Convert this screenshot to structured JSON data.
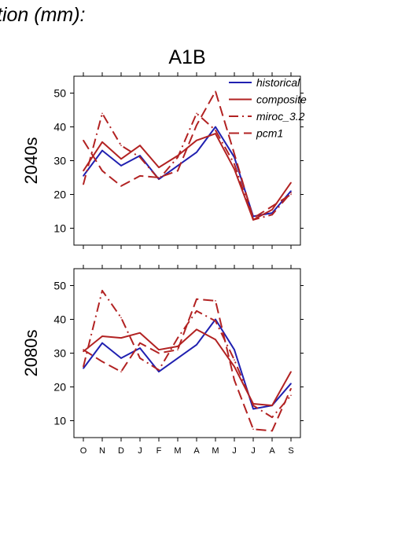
{
  "page": {
    "heading": "tion (mm):",
    "scenario": "A1B"
  },
  "chart_data": [
    {
      "type": "line",
      "ylabel": "2040s",
      "ylim": [
        5,
        55
      ],
      "yticks": [
        10,
        20,
        30,
        40,
        50
      ],
      "categories": [
        "O",
        "N",
        "D",
        "J",
        "F",
        "M",
        "A",
        "M",
        "J",
        "J",
        "A",
        "S"
      ],
      "legend": {
        "placement": "top-right"
      },
      "series": [
        {
          "name": "historical",
          "color": "#2020b0",
          "dash": "solid",
          "values": [
            25.5,
            33.0,
            28.5,
            31.5,
            24.5,
            28.5,
            32.5,
            40.0,
            31.0,
            13.5,
            14.5,
            21.0
          ]
        },
        {
          "name": "composite",
          "color": "#b22222",
          "dash": "solid",
          "values": [
            27.0,
            35.5,
            30.5,
            34.5,
            28.0,
            31.5,
            36.0,
            38.0,
            27.5,
            12.5,
            15.5,
            23.5
          ]
        },
        {
          "name": "miroc_3.2",
          "color": "#b22222",
          "dash": "dashdot",
          "values": [
            23.0,
            44.0,
            34.5,
            31.0,
            24.5,
            31.0,
            44.0,
            39.0,
            29.0,
            12.5,
            14.0,
            20.5
          ]
        },
        {
          "name": "pcm1",
          "color": "#b22222",
          "dash": "dash",
          "values": [
            36.0,
            27.0,
            22.5,
            25.5,
            25.0,
            27.0,
            40.5,
            50.5,
            32.0,
            13.0,
            16.5,
            20.0
          ]
        }
      ]
    },
    {
      "type": "line",
      "ylabel": "2080s",
      "ylim": [
        5,
        55
      ],
      "yticks": [
        10,
        20,
        30,
        40,
        50
      ],
      "categories": [
        "O",
        "N",
        "D",
        "J",
        "F",
        "M",
        "A",
        "M",
        "J",
        "J",
        "A",
        "S"
      ],
      "series": [
        {
          "name": "historical",
          "color": "#2020b0",
          "dash": "solid",
          "values": [
            25.5,
            33.0,
            28.5,
            31.5,
            24.5,
            28.5,
            32.5,
            40.0,
            31.0,
            13.5,
            14.5,
            21.0
          ]
        },
        {
          "name": "composite",
          "color": "#b22222",
          "dash": "solid",
          "values": [
            30.5,
            35.0,
            34.5,
            36.0,
            31.0,
            32.0,
            37.0,
            34.0,
            26.0,
            15.0,
            14.5,
            24.5
          ]
        },
        {
          "name": "miroc_3.2",
          "color": "#b22222",
          "dash": "dashdot",
          "values": [
            26.0,
            48.5,
            40.5,
            28.5,
            25.0,
            34.5,
            42.5,
            39.5,
            28.0,
            14.5,
            11.0,
            17.5
          ]
        },
        {
          "name": "pcm1",
          "color": "#b22222",
          "dash": "dash",
          "values": [
            31.0,
            27.5,
            24.5,
            33.0,
            30.0,
            31.0,
            46.0,
            45.5,
            22.0,
            7.5,
            7.0,
            19.5
          ]
        }
      ]
    }
  ]
}
